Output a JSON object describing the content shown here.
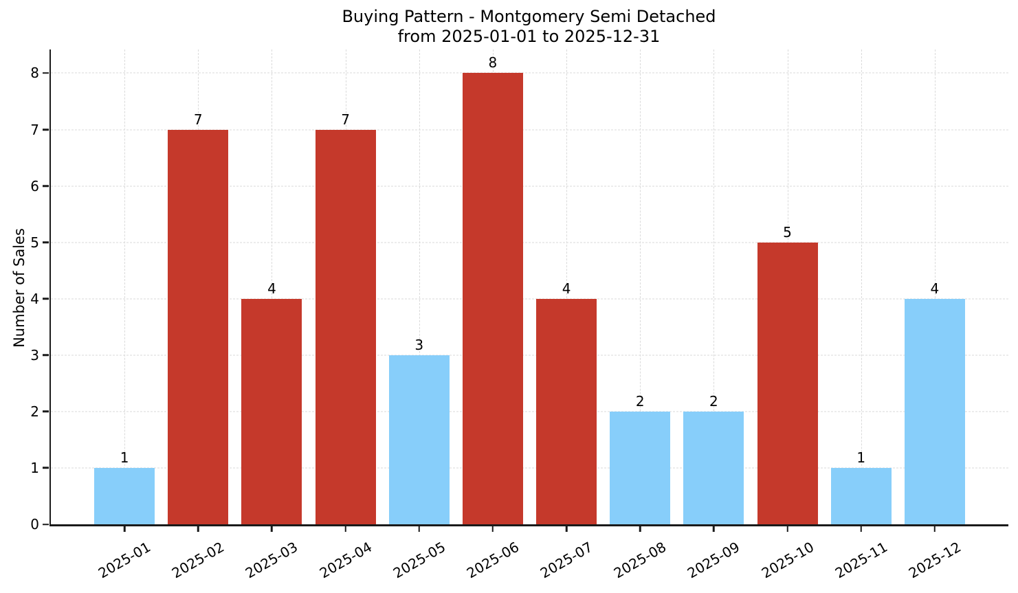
{
  "chart_data": {
    "type": "bar",
    "title": "Buying Pattern - Montgomery Semi Detached\nfrom 2025-01-01 to 2025-12-31",
    "xlabel": "",
    "ylabel": "Number of Sales",
    "categories": [
      "2025-01",
      "2025-02",
      "2025-03",
      "2025-04",
      "2025-05",
      "2025-06",
      "2025-07",
      "2025-08",
      "2025-09",
      "2025-10",
      "2025-11",
      "2025-12"
    ],
    "values": [
      1,
      7,
      4,
      7,
      3,
      8,
      4,
      2,
      2,
      5,
      1,
      4
    ],
    "bar_colors": [
      "#87CEFA",
      "#C5392B",
      "#C5392B",
      "#C5392B",
      "#87CEFA",
      "#C5392B",
      "#C5392B",
      "#87CEFA",
      "#87CEFA",
      "#C5392B",
      "#87CEFA",
      "#87CEFA"
    ],
    "color_palette": {
      "skyblue": "#87CEFA",
      "brick_red": "#C5392B"
    },
    "yticks": [
      0,
      1,
      2,
      3,
      4,
      5,
      6,
      7,
      8
    ],
    "ylim": [
      0,
      8.42
    ],
    "grid": true,
    "grid_style": "dashed",
    "legend": false
  }
}
